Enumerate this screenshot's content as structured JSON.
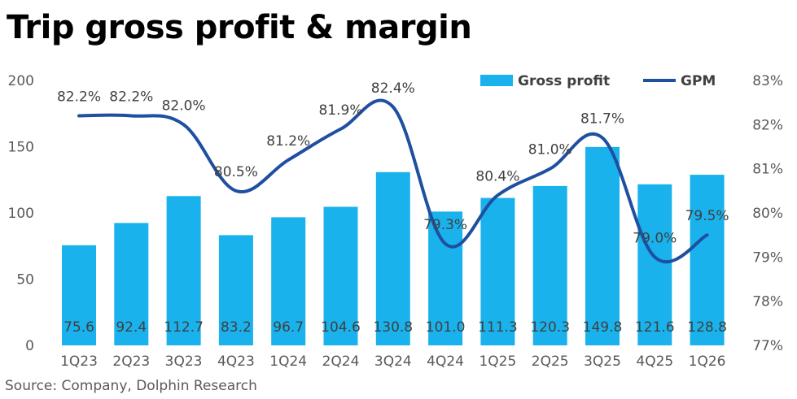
{
  "title": "Trip gross profit & margin",
  "source": "Source: Company, Dolphin Research",
  "colors": {
    "bar": "#1AB2EC",
    "line": "#1F4FA0",
    "text": "#404040",
    "axis_text": "#595959"
  },
  "chart_data": {
    "type": "bar+line",
    "title": "Trip gross profit & margin",
    "categories": [
      "1Q23",
      "2Q23",
      "3Q23",
      "4Q23",
      "1Q24",
      "2Q24",
      "3Q24",
      "4Q24",
      "1Q25",
      "2Q25",
      "3Q25",
      "4Q25",
      "1Q26"
    ],
    "series": [
      {
        "name": "Gross profit",
        "type": "bar",
        "axis": "left",
        "values": [
          75.6,
          92.4,
          112.7,
          83.2,
          96.7,
          104.6,
          130.8,
          101.0,
          111.3,
          120.3,
          149.8,
          121.6,
          128.8
        ],
        "labels": [
          "75.6",
          "92.4",
          "112.7",
          "83.2",
          "96.7",
          "104.6",
          "130.8",
          "101.0",
          "111.3",
          "120.3",
          "149.8",
          "121.6",
          "128.8"
        ]
      },
      {
        "name": "GPM",
        "type": "line",
        "axis": "right",
        "smooth": true,
        "values": [
          82.2,
          82.2,
          82.0,
          80.5,
          81.2,
          81.9,
          82.4,
          79.3,
          80.4,
          81.0,
          81.7,
          79.0,
          79.5
        ],
        "labels": [
          "82.2%",
          "82.2%",
          "82.0%",
          "80.5%",
          "81.2%",
          "81.9%",
          "82.4%",
          "79.3%",
          "80.4%",
          "81.0%",
          "81.7%",
          "79.0%",
          "79.5%"
        ]
      }
    ],
    "left_axis": {
      "range": [
        0,
        200
      ],
      "ticks": [
        "0",
        "50",
        "100",
        "150",
        "200"
      ]
    },
    "right_axis": {
      "range": [
        77,
        83
      ],
      "ticks": [
        "77%",
        "78%",
        "79%",
        "80%",
        "81%",
        "82%",
        "83%"
      ]
    },
    "grid": false,
    "legend": {
      "placement": "top-right",
      "items": [
        "Gross profit",
        "GPM"
      ]
    }
  }
}
